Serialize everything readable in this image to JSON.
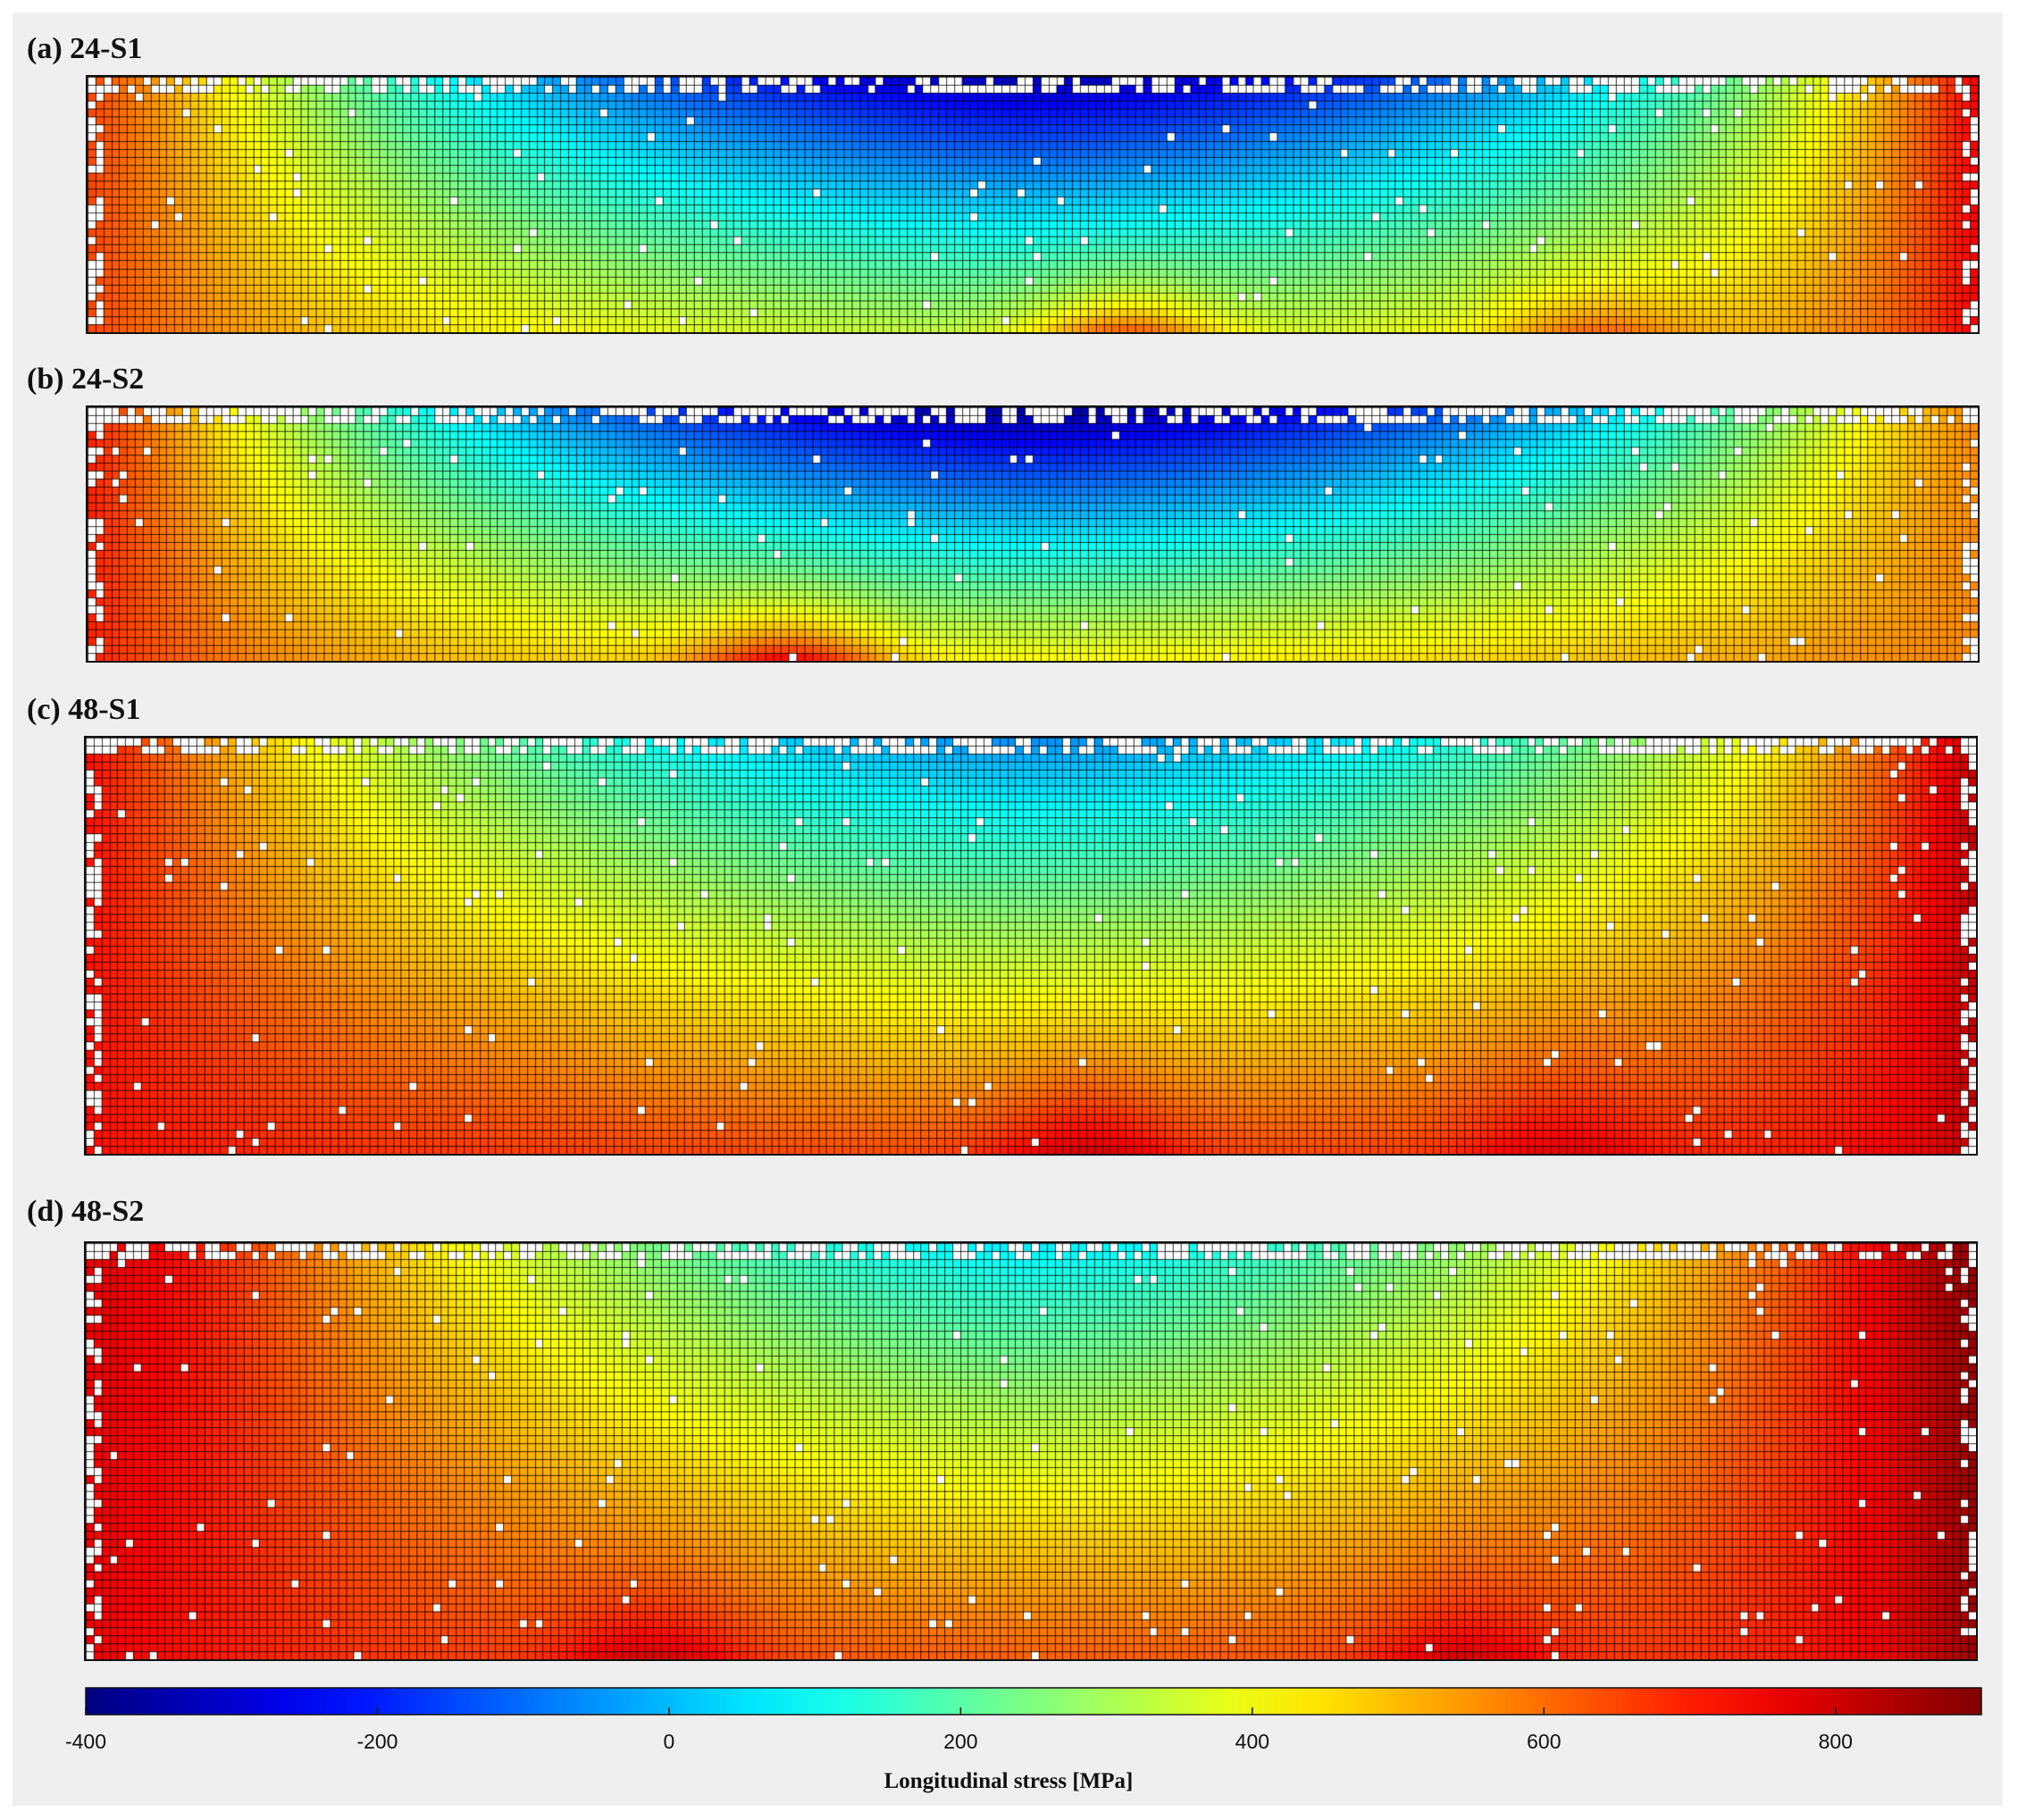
{
  "chart_data": {
    "type": "heatmap",
    "panels": [
      {
        "id": "a",
        "label": "(a) 24-S1",
        "grid_cols": 240,
        "grid_rows": 32,
        "stress_field": {
          "left_edge": 650,
          "right_edge": 750,
          "top_center": -330,
          "bottom_center": 330,
          "top_edge": 500,
          "bottom_edge": 560,
          "bottom_hotspots": [
            {
              "x": 0.55,
              "value": 640
            },
            {
              "x": 0.8,
              "value": 620
            }
          ]
        }
      },
      {
        "id": "b",
        "label": "(b) 24-S2",
        "grid_cols": 240,
        "grid_rows": 32,
        "stress_field": {
          "left_edge": 700,
          "right_edge": 560,
          "top_center": -370,
          "bottom_center": 420,
          "top_edge": 500,
          "bottom_edge": 580,
          "bottom_hotspots": [
            {
              "x": 0.37,
              "value": 760
            }
          ]
        }
      },
      {
        "id": "c",
        "label": "(c) 48-S1",
        "grid_cols": 240,
        "grid_rows": 52,
        "stress_field": {
          "left_edge": 720,
          "right_edge": 820,
          "top_center": -60,
          "bottom_center": 640,
          "top_edge": 580,
          "bottom_edge": 700,
          "bottom_hotspots": [
            {
              "x": 0.53,
              "value": 800
            },
            {
              "x": 0.78,
              "value": 780
            }
          ]
        }
      },
      {
        "id": "d",
        "label": "(d) 48-S2",
        "grid_cols": 240,
        "grid_rows": 52,
        "stress_field": {
          "left_edge": 760,
          "right_edge": 870,
          "top_center": 60,
          "bottom_center": 620,
          "top_edge": 800,
          "bottom_edge": 700,
          "bottom_hotspots": [
            {
              "x": 0.3,
              "value": 800
            },
            {
              "x": 0.73,
              "value": 790
            }
          ]
        }
      }
    ],
    "colorbar": {
      "title": "Longitudinal stress [MPa]",
      "min": -400,
      "max": 900,
      "ticks": [
        -400,
        -200,
        0,
        200,
        400,
        600,
        800
      ],
      "tick_labels": [
        "-400",
        "-200",
        "0",
        "200",
        "400",
        "600",
        "800"
      ],
      "colormap": "jet"
    }
  }
}
